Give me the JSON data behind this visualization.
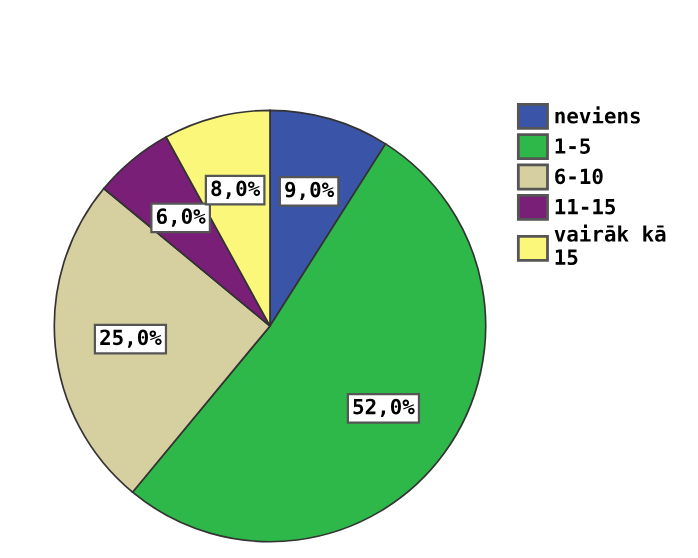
{
  "chart_data": {
    "type": "pie",
    "categories": [
      "neviens",
      "1-5",
      "6-10",
      "11-15",
      "vairāk kā 15"
    ],
    "values": [
      9,
      52,
      25,
      6,
      8
    ],
    "value_labels": [
      "9,0%",
      "52,0%",
      "25,0%",
      "6,0%",
      "8,0%"
    ],
    "colors": [
      "#3a55a8",
      "#2fb84a",
      "#d6cfa0",
      "#7a1f78",
      "#fbf77a"
    ],
    "legend": "right"
  }
}
